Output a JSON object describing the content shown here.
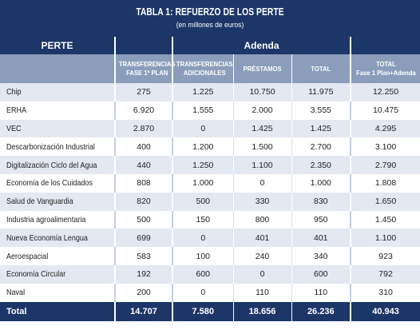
{
  "title": "TABLA 1: REFUERZO DE LOS PERTE",
  "subtitle": "(en millones de euros)",
  "headers": {
    "perte": "PERTE",
    "adenda": "Adenda",
    "transferencias_fase1_line1": "TRANSFERENCIAS",
    "transferencias_fase1_line2": "FASE 1ª PLAN",
    "transferencias_adicionales_line1": "TRANSFERENCIAS",
    "transferencias_adicionales_line2": "ADICIONALES",
    "prestamos": "PRÉSTAMOS",
    "total": "TOTAL",
    "total_fase1_adenda_line1": "TOTAL",
    "total_fase1_adenda_line2": "Fase 1 Plan+Adenda"
  },
  "rows": [
    {
      "name": "Chip",
      "fase1": "275",
      "adicionales": "1.225",
      "prestamos": "10.750",
      "total": "11.975",
      "total_all": "12.250"
    },
    {
      "name": "ERHA",
      "fase1": "6.920",
      "adicionales": "1.555",
      "prestamos": "2.000",
      "total": "3.555",
      "total_all": "10.475"
    },
    {
      "name": "VEC",
      "fase1": "2.870",
      "adicionales": "0",
      "prestamos": "1.425",
      "total": "1.425",
      "total_all": "4.295"
    },
    {
      "name": "Descarbonización Industrial",
      "fase1": "400",
      "adicionales": "1.200",
      "prestamos": "1.500",
      "total": "2.700",
      "total_all": "3.100"
    },
    {
      "name": "Digitalización Ciclo del Agua",
      "fase1": "440",
      "adicionales": "1.250",
      "prestamos": "1.100",
      "total": "2.350",
      "total_all": "2.790"
    },
    {
      "name": "Economía de los Cuidados",
      "fase1": "808",
      "adicionales": "1.000",
      "prestamos": "0",
      "total": "1.000",
      "total_all": "1.808"
    },
    {
      "name": "Salud de Vanguardia",
      "fase1": "820",
      "adicionales": "500",
      "prestamos": "330",
      "total": "830",
      "total_all": "1.650"
    },
    {
      "name": "Industria agroalimentaria",
      "fase1": "500",
      "adicionales": "150",
      "prestamos": "800",
      "total": "950",
      "total_all": "1.450"
    },
    {
      "name": "Nueva Economía Lengua",
      "fase1": "699",
      "adicionales": "0",
      "prestamos": "401",
      "total": "401",
      "total_all": "1.100"
    },
    {
      "name": "Aeroespacial",
      "fase1": "583",
      "adicionales": "100",
      "prestamos": "240",
      "total": "340",
      "total_all": "923"
    },
    {
      "name": "Economía Circular",
      "fase1": "192",
      "adicionales": "600",
      "prestamos": "0",
      "total": "600",
      "total_all": "792"
    },
    {
      "name": "Naval",
      "fase1": "200",
      "adicionales": "0",
      "prestamos": "110",
      "total": "110",
      "total_all": "310"
    }
  ],
  "totals": {
    "name": "Total",
    "fase1": "14.707",
    "adicionales": "7.580",
    "prestamos": "18.656",
    "total": "26.236",
    "total_all": "40.943"
  }
}
